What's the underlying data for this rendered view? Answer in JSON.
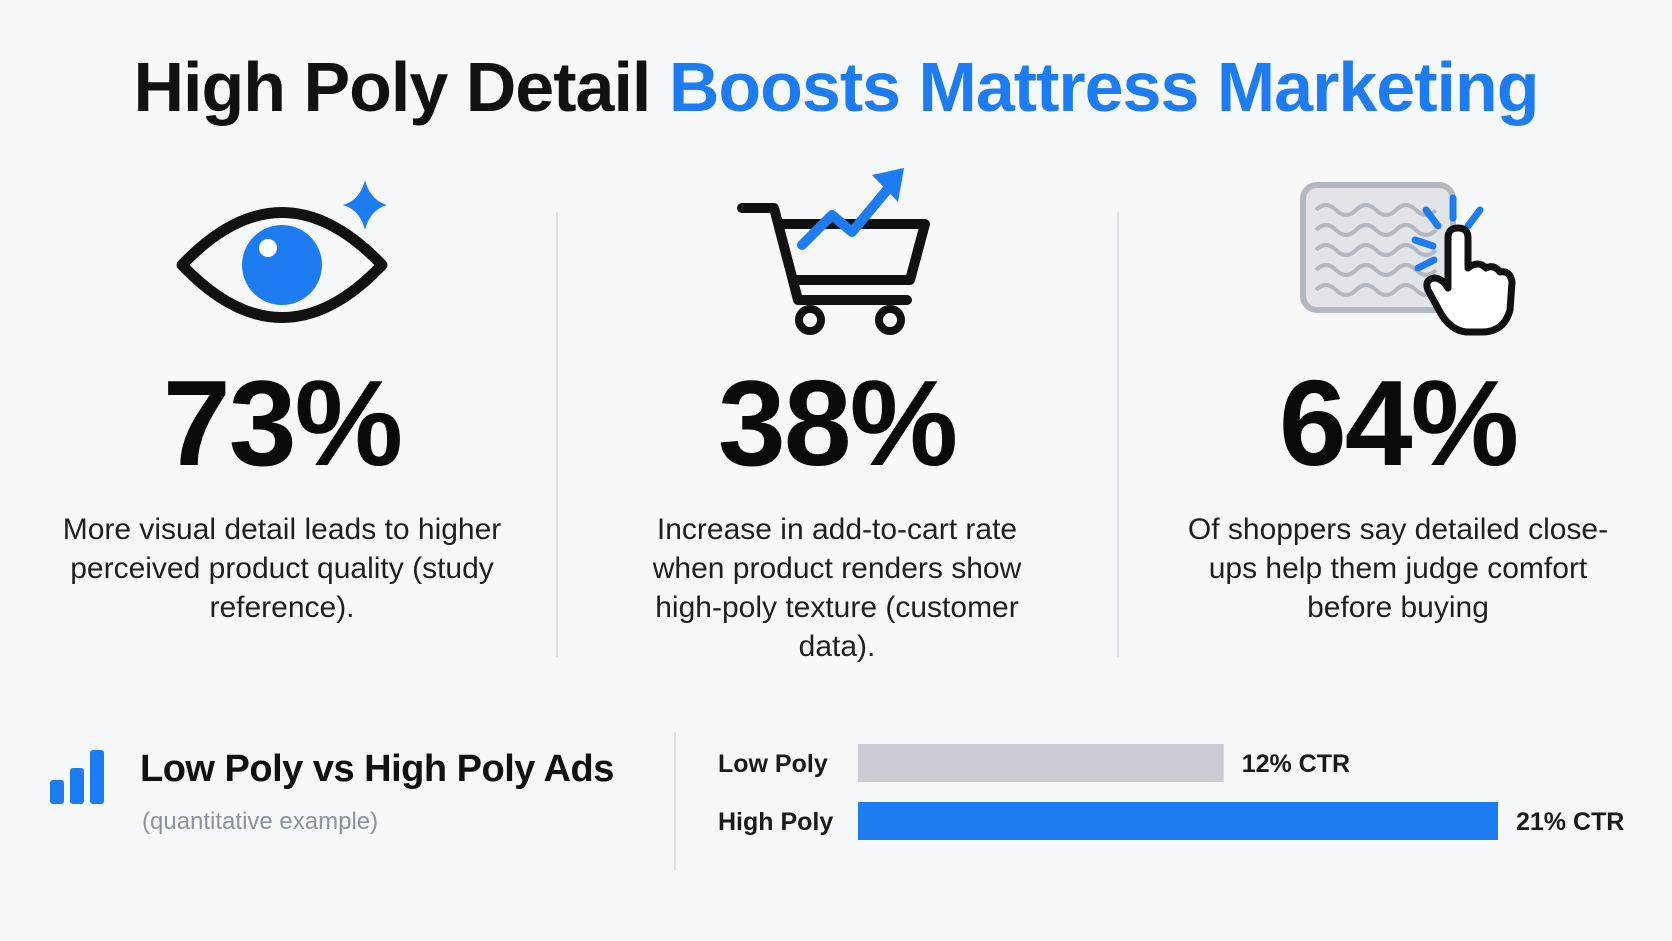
{
  "title": {
    "part1": "High Poly Detail",
    "part2": "Boosts Mattress Marketing"
  },
  "stats": [
    {
      "icon": "eye-icon",
      "value": "73%",
      "description": "More visual detail leads to higher perceived product quality (study reference)."
    },
    {
      "icon": "shopping-cart-trend-icon",
      "value": "38%",
      "description": "Increase in add-to-cart rate when product renders show high-poly texture (customer data)."
    },
    {
      "icon": "mattress-tap-icon",
      "value": "64%",
      "description": "Of shoppers say detailed close-ups help them judge comfort before buying"
    }
  ],
  "comparison": {
    "icon": "bar-chart-icon",
    "title": "Low Poly vs High Poly Ads",
    "subtitle": "(quantitative example)"
  },
  "colors": {
    "accent": "#1e7cf2",
    "low_bar": "#c9ccd2",
    "text": "#111111"
  },
  "chart_data": {
    "type": "bar",
    "orientation": "horizontal",
    "categories": [
      "Low Poly",
      "High Poly"
    ],
    "values": [
      12,
      21
    ],
    "data_labels": [
      "12% CTR",
      "21% CTR"
    ],
    "title": "Low Poly vs High Poly Ads",
    "xlabel": "",
    "ylabel": "",
    "xlim": [
      0,
      21
    ],
    "grid": false
  }
}
